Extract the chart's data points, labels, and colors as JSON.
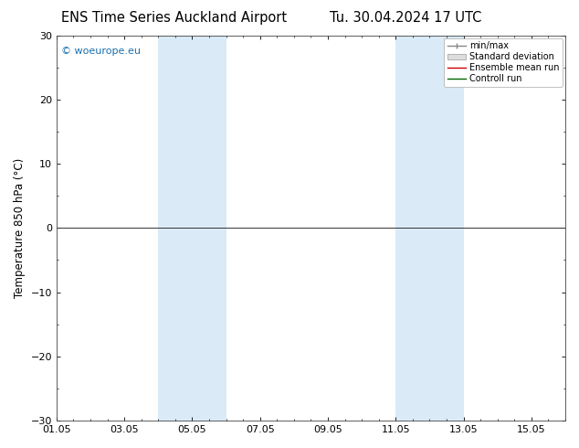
{
  "title_left": "ENS Time Series Auckland Airport",
  "title_right": "Tu. 30.04.2024 17 UTC",
  "ylabel": "Temperature 850 hPa (°C)",
  "ylim": [
    -30,
    30
  ],
  "yticks": [
    -30,
    -20,
    -10,
    0,
    10,
    20,
    30
  ],
  "xlim": [
    0,
    15
  ],
  "xtick_labels": [
    "01.05",
    "03.05",
    "05.05",
    "07.05",
    "09.05",
    "11.05",
    "13.05",
    "15.05"
  ],
  "xtick_positions": [
    0,
    2,
    4,
    6,
    8,
    10,
    12,
    14
  ],
  "weekend_spans": [
    [
      3,
      4
    ],
    [
      4,
      5
    ],
    [
      10,
      11
    ],
    [
      11,
      12
    ]
  ],
  "weekend_color": "#daeaf7",
  "hline_y": 0,
  "hline_color": "#333333",
  "watermark": "© woeurope.eu",
  "watermark_color": "#1a6faf",
  "legend_entries": [
    "min/max",
    "Standard deviation",
    "Ensemble mean run",
    "Controll run"
  ],
  "legend_line_colors": [
    "#888888",
    "#cccccc",
    "#cc0000",
    "#006600"
  ],
  "bg_color": "#ffffff",
  "plot_bg_color": "#ffffff",
  "title_fontsize": 10.5,
  "label_fontsize": 8.5,
  "tick_fontsize": 8
}
